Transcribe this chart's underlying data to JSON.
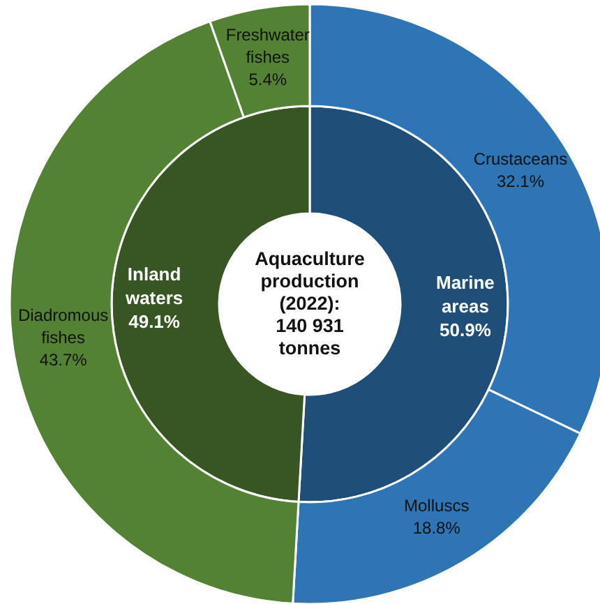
{
  "chart_data": [
    {
      "type": "donut",
      "title": "Aquaculture\nproduction\n(2022):\n140 931\ntonnes",
      "categories": [
        "Marine areas",
        "Inland waters"
      ],
      "values": [
        50.9,
        49.1
      ],
      "colors": [
        "#1f4e79",
        "#375623"
      ],
      "value_labels": [
        "50.9%",
        "49.1%"
      ]
    },
    {
      "type": "donut",
      "categories": [
        "Crustaceans",
        "Molluscs",
        "Diadromous fishes",
        "Freshwater fishes"
      ],
      "values": [
        32.1,
        18.8,
        43.7,
        5.4
      ],
      "colors": [
        "#2e75b6",
        "#2e75b6",
        "#548235",
        "#548235"
      ],
      "value_labels": [
        "32.1%",
        "18.8%",
        "43.7%",
        "5.4%"
      ]
    }
  ]
}
